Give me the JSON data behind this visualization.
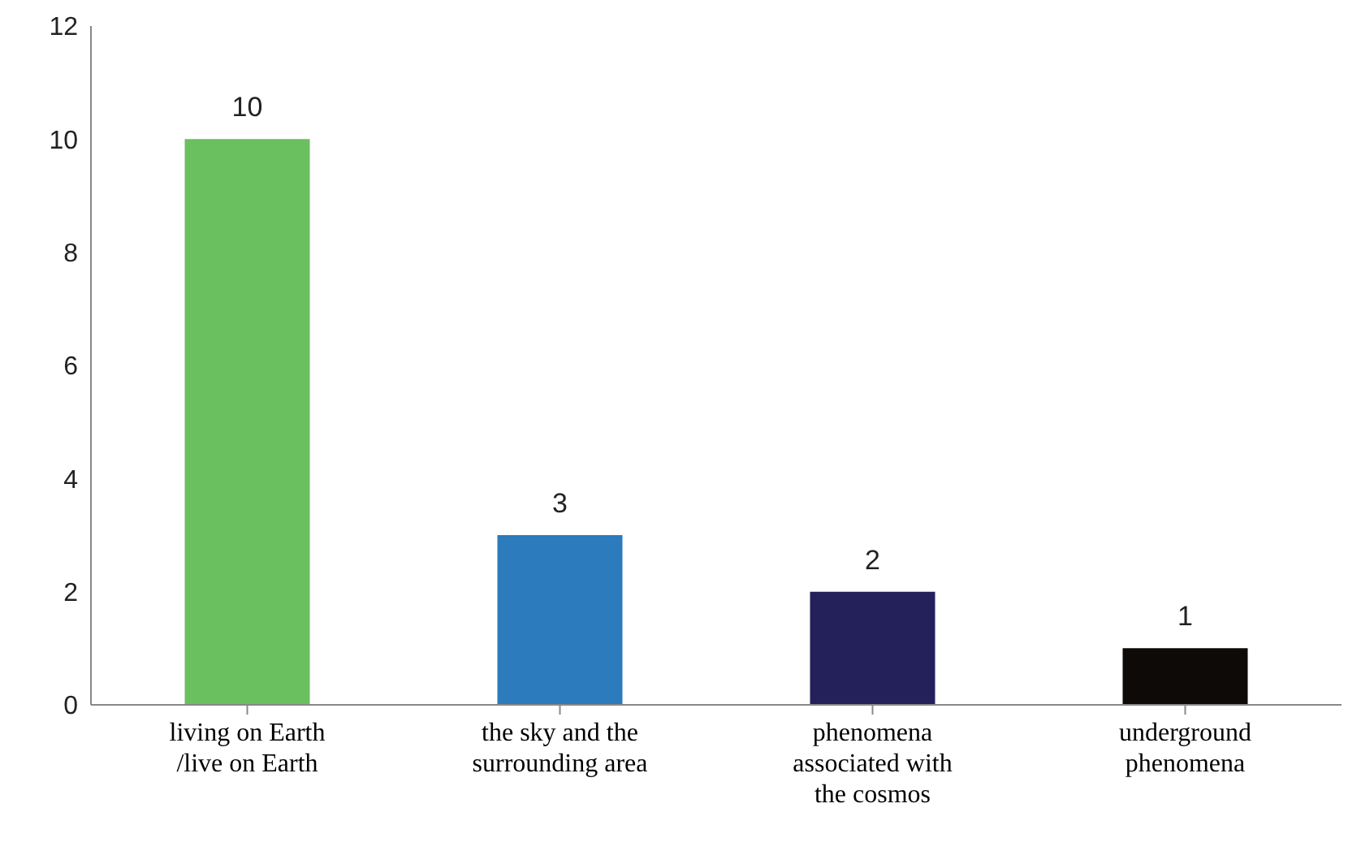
{
  "chart_data": {
    "type": "bar",
    "categories": [
      "living on Earth /live on Earth",
      "the sky and the surrounding area",
      "phenomena associated with the cosmos",
      "underground phenomena"
    ],
    "values": [
      10,
      3,
      2,
      1
    ],
    "colors": [
      "#6abf5e",
      "#2b7bbd",
      "#23205a",
      "#0d0a08"
    ],
    "ylim": [
      0,
      12
    ],
    "yticks": [
      0,
      2,
      4,
      6,
      8,
      10,
      12
    ],
    "grid": false,
    "data_labels": true
  }
}
